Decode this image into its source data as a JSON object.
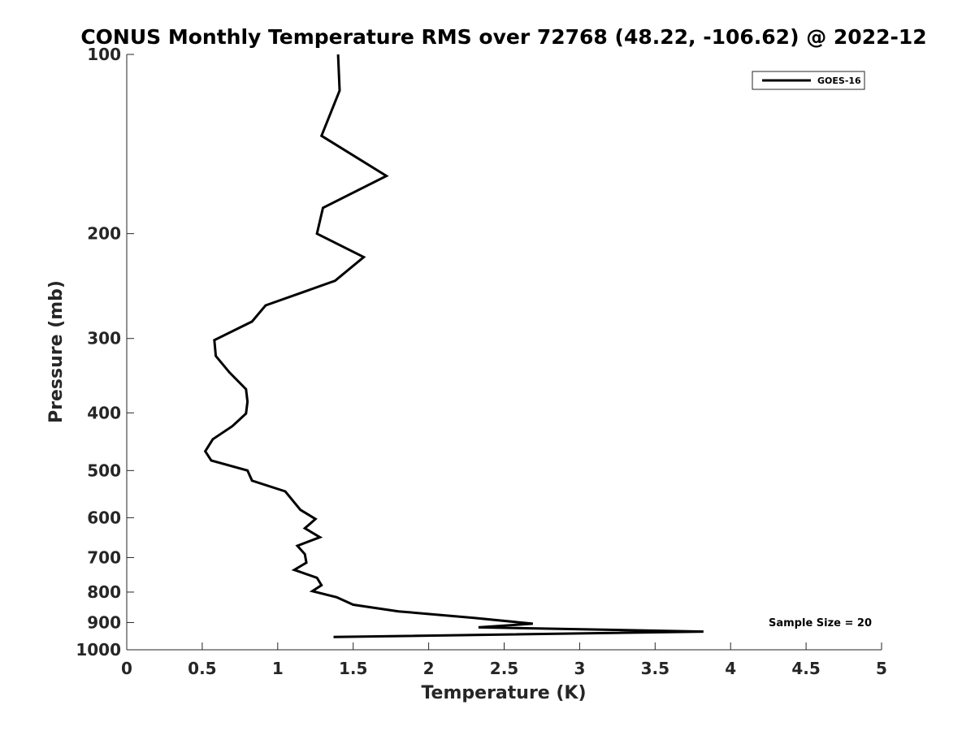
{
  "chart_data": {
    "type": "line",
    "title": "CONUS Monthly Temperature RMS over 72768 (48.22, -106.62) @ 2022-12",
    "xlabel": "Temperature (K)",
    "ylabel": "Pressure (mb)",
    "xlim": [
      0,
      5
    ],
    "ylim": [
      100,
      1000
    ],
    "y_scale": "log",
    "y_reversed": true,
    "x_ticks": [
      0,
      0.5,
      1,
      1.5,
      2,
      2.5,
      3,
      3.5,
      4,
      4.5,
      5
    ],
    "x_tick_labels": [
      "0",
      "0.5",
      "1",
      "1.5",
      "2",
      "2.5",
      "3",
      "3.5",
      "4",
      "4.5",
      "5"
    ],
    "y_ticks": [
      100,
      200,
      300,
      400,
      500,
      600,
      700,
      800,
      900,
      1000
    ],
    "y_tick_labels": [
      "100",
      "200",
      "300",
      "400",
      "500",
      "600",
      "700",
      "800",
      "900",
      "1000"
    ],
    "grid": false,
    "legend": "top-right",
    "series": [
      {
        "name": "GOES-16",
        "color": "#000000",
        "x": [
          1.4,
          1.41,
          1.29,
          1.72,
          1.3,
          1.26,
          1.57,
          1.38,
          0.92,
          0.83,
          0.58,
          0.59,
          0.68,
          0.79,
          0.8,
          0.79,
          0.7,
          0.57,
          0.52,
          0.56,
          0.8,
          0.83,
          1.05,
          1.15,
          1.25,
          1.18,
          1.28,
          1.13,
          1.18,
          1.19,
          1.11,
          1.26,
          1.29,
          1.23,
          1.39,
          1.5,
          1.8,
          2.3,
          2.69,
          2.33,
          3.82,
          1.37
        ],
        "y": [
          100,
          115,
          137,
          160,
          181,
          200,
          219,
          240,
          264,
          281,
          302,
          321,
          342,
          365,
          383,
          401,
          421,
          443,
          464,
          481,
          500,
          520,
          542,
          582,
          603,
          625,
          647,
          669,
          691,
          714,
          734,
          757,
          779,
          797,
          816,
          840,
          862,
          884,
          904,
          917,
          932,
          952
        ]
      }
    ],
    "annotations": [
      {
        "text": "Sample Size = 20",
        "position": "bottom-right"
      }
    ]
  }
}
